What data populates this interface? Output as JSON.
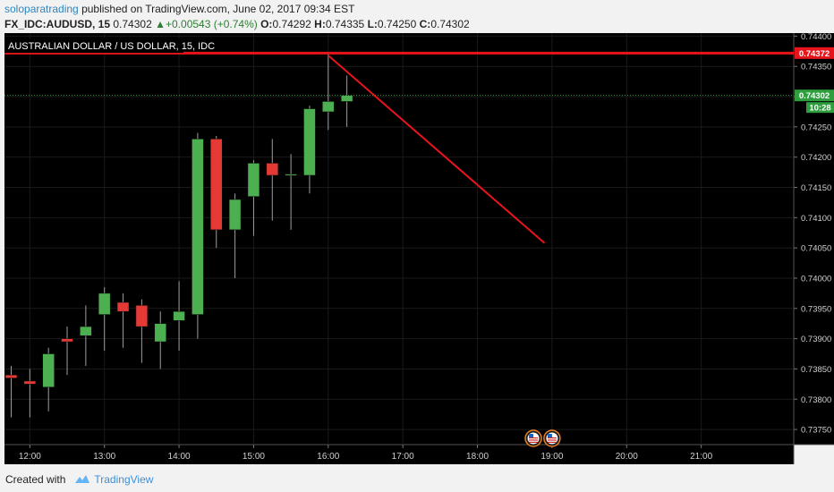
{
  "header": {
    "publisher": "soloparatrading",
    "published_text": "published on TradingView.com, June 02, 2017 09:34 EST",
    "symbol": "FX_IDC:AUDUSD, 15",
    "last": "0.74302",
    "change": "+0.00543 (+0.74%)",
    "o_label": "O:",
    "o": "0.74292",
    "h_label": "H:",
    "h": "0.74335",
    "l_label": "L:",
    "l": "0.74250",
    "c_label": "C:",
    "c": "0.74302"
  },
  "footer": {
    "created_with": "Created with",
    "brand": "TradingView"
  },
  "colors": {
    "up": "#4caf50",
    "down": "#e53935",
    "background": "#000000",
    "resistance": "#e8141b",
    "price_tag": "#2e9e3e"
  },
  "icons": [
    "us-flag-event-icon",
    "us-flag-event-icon",
    "tradingview-logo-icon"
  ],
  "chart_data": {
    "type": "candlestick",
    "title": "AUSTRALIAN DOLLAR / US DOLLAR, 15, IDC",
    "ylim": [
      0.73725,
      0.74405
    ],
    "y_ticks": [
      "0.74400",
      "0.74350",
      "0.74300",
      "0.74250",
      "0.74200",
      "0.74150",
      "0.74100",
      "0.74050",
      "0.74000",
      "0.73950",
      "0.73900",
      "0.73850",
      "0.73800",
      "0.73750"
    ],
    "x_ticks": [
      {
        "time": 12.0,
        "label": "12:00"
      },
      {
        "time": 13.0,
        "label": "13:00"
      },
      {
        "time": 14.0,
        "label": "14:00"
      },
      {
        "time": 15.0,
        "label": "15:00"
      },
      {
        "time": 16.0,
        "label": "16:00"
      },
      {
        "time": 17.0,
        "label": "17:00"
      },
      {
        "time": 18.0,
        "label": "18:00"
      },
      {
        "time": 19.0,
        "label": "19:00"
      },
      {
        "time": 20.0,
        "label": "20:00"
      },
      {
        "time": 21.0,
        "label": "21:00"
      }
    ],
    "xlim": [
      11.66,
      22.24
    ],
    "candles": [
      {
        "time": 11.5,
        "open": 0.7383,
        "high": 0.7386,
        "low": 0.7375,
        "close": 0.7385
      },
      {
        "time": 11.75,
        "open": 0.7384,
        "high": 0.73855,
        "low": 0.7377,
        "close": 0.73835
      },
      {
        "time": 12.0,
        "open": 0.7383,
        "high": 0.7385,
        "low": 0.7377,
        "close": 0.73825
      },
      {
        "time": 12.25,
        "open": 0.7382,
        "high": 0.73885,
        "low": 0.7378,
        "close": 0.73875
      },
      {
        "time": 12.5,
        "open": 0.739,
        "high": 0.7392,
        "low": 0.7384,
        "close": 0.73895
      },
      {
        "time": 12.75,
        "open": 0.73905,
        "high": 0.73955,
        "low": 0.73855,
        "close": 0.7392
      },
      {
        "time": 13.0,
        "open": 0.7394,
        "high": 0.73985,
        "low": 0.7388,
        "close": 0.73975
      },
      {
        "time": 13.25,
        "open": 0.7396,
        "high": 0.73975,
        "low": 0.73885,
        "close": 0.73945
      },
      {
        "time": 13.5,
        "open": 0.73955,
        "high": 0.73965,
        "low": 0.7386,
        "close": 0.7392
      },
      {
        "time": 13.75,
        "open": 0.73895,
        "high": 0.73945,
        "low": 0.7385,
        "close": 0.73925
      },
      {
        "time": 14.0,
        "open": 0.7393,
        "high": 0.73995,
        "low": 0.7388,
        "close": 0.73945
      },
      {
        "time": 14.25,
        "open": 0.7394,
        "high": 0.7424,
        "low": 0.739,
        "close": 0.7423
      },
      {
        "time": 14.5,
        "open": 0.7423,
        "high": 0.74235,
        "low": 0.7405,
        "close": 0.7408
      },
      {
        "time": 14.75,
        "open": 0.7408,
        "high": 0.7414,
        "low": 0.74,
        "close": 0.7413
      },
      {
        "time": 15.0,
        "open": 0.74135,
        "high": 0.74195,
        "low": 0.7407,
        "close": 0.7419
      },
      {
        "time": 15.25,
        "open": 0.7419,
        "high": 0.7423,
        "low": 0.74095,
        "close": 0.7417
      },
      {
        "time": 15.5,
        "open": 0.7417,
        "high": 0.74205,
        "low": 0.7408,
        "close": 0.74172
      },
      {
        "time": 15.75,
        "open": 0.7417,
        "high": 0.74285,
        "low": 0.7414,
        "close": 0.7428
      },
      {
        "time": 16.0,
        "open": 0.74275,
        "high": 0.74372,
        "low": 0.74245,
        "close": 0.74292
      },
      {
        "time": 16.25,
        "open": 0.74292,
        "high": 0.74335,
        "low": 0.7425,
        "close": 0.74302
      }
    ],
    "lines": [
      {
        "name": "resistance",
        "type": "horizontal",
        "value": 0.74372
      },
      {
        "name": "current-price",
        "type": "horizontal",
        "value": 0.74302,
        "style": "dotted"
      },
      {
        "name": "trend-line",
        "type": "segment",
        "x1": 16.0,
        "y1": 0.74368,
        "x2": 18.9,
        "y2": 0.74058
      }
    ],
    "labels": {
      "resistance_tag": "0.74372",
      "price_tag": "0.74302",
      "countdown": "10:28"
    },
    "events": [
      {
        "time": 18.75,
        "icon": "us-flag-event-icon"
      },
      {
        "time": 19.0,
        "icon": "us-flag-event-icon"
      }
    ]
  }
}
